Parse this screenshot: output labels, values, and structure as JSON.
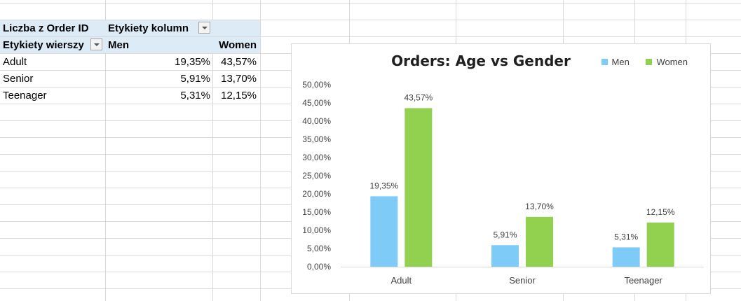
{
  "pivot": {
    "header1": {
      "label": "Liczba z Order ID",
      "col_label": "Etykiety kolumn"
    },
    "header2": {
      "row_label": "Etykiety wierszy",
      "men": "Men",
      "women": "Women"
    },
    "rows": [
      {
        "label": "Adult",
        "men": "19,35%",
        "women": "43,57%"
      },
      {
        "label": "Senior",
        "men": "5,91%",
        "women": "13,70%"
      },
      {
        "label": "Teenager",
        "men": "5,31%",
        "women": "12,15%"
      }
    ]
  },
  "chart_data": {
    "type": "bar",
    "title": "Orders: Age vs Gender",
    "categories": [
      "Adult",
      "Senior",
      "Teenager"
    ],
    "series": [
      {
        "name": "Men",
        "values": [
          19.35,
          5.91,
          5.31
        ],
        "labels": [
          "19,35%",
          "5,91%",
          "5,31%"
        ],
        "color": "#7fcbf7"
      },
      {
        "name": "Women",
        "values": [
          43.57,
          13.7,
          12.15
        ],
        "labels": [
          "43,57%",
          "13,70%",
          "12,15%"
        ],
        "color": "#92d050"
      }
    ],
    "ylim": [
      0,
      50
    ],
    "yticks": [
      "0,00%",
      "5,00%",
      "10,00%",
      "15,00%",
      "20,00%",
      "25,00%",
      "30,00%",
      "35,00%",
      "40,00%",
      "45,00%",
      "50,00%"
    ],
    "xlabel": "",
    "ylabel": "",
    "legend": "top-right",
    "grid": false
  }
}
